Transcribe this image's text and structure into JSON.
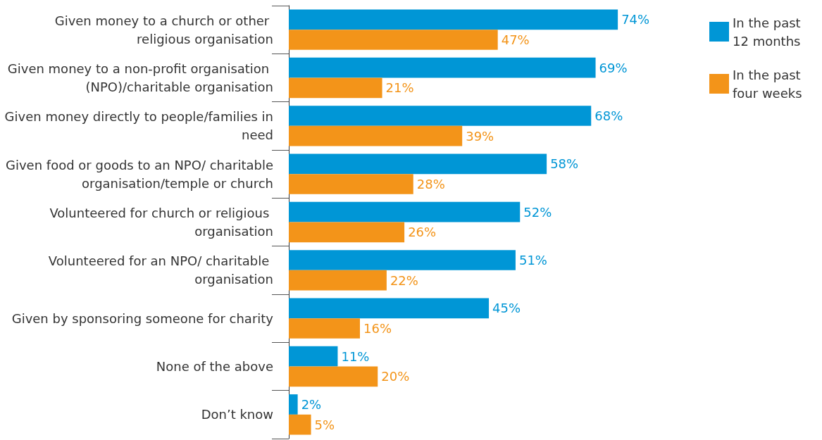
{
  "chart_data": {
    "type": "bar",
    "orientation": "horizontal",
    "categories": [
      "Given money to a church or other religious organisation",
      "Given money to a non-profit organisation (NPO)/charitable organisation",
      "Given money directly to people/families in need",
      "Given food or goods to an NPO/ charitable organisation/temple or church",
      "Volunteered for church or religious organisation",
      "Volunteered for an NPO/ charitable organisation",
      "Given by sponsoring someone for charity",
      "None of the above",
      "Don’t know"
    ],
    "series": [
      {
        "name": "In the past 12 months",
        "color": "#0096d6",
        "values": [
          74,
          69,
          68,
          58,
          52,
          51,
          45,
          11,
          2
        ],
        "value_labels": [
          "74%",
          "69%",
          "68%",
          "58%",
          "52%",
          "51%",
          "45%",
          "11%",
          "2%"
        ]
      },
      {
        "name": "In the past four weeks",
        "color": "#f39419",
        "values": [
          47,
          21,
          39,
          28,
          26,
          22,
          16,
          20,
          5
        ],
        "value_labels": [
          "47%",
          "21%",
          "39%",
          "28%",
          "26%",
          "22%",
          "16%",
          "20%",
          "5%"
        ]
      }
    ],
    "legend": "top right"
  }
}
